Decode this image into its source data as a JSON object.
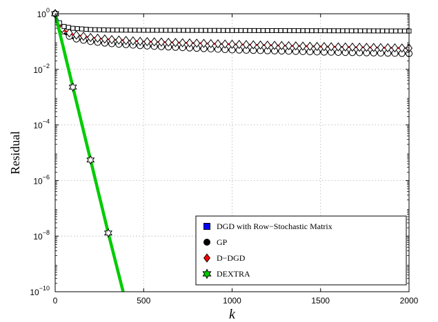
{
  "chart_data": {
    "type": "line",
    "xlabel": "k",
    "ylabel": "Residual",
    "xscale": "linear",
    "yscale": "log",
    "xlim": [
      0,
      2000
    ],
    "ylim_exponent": [
      -10,
      0
    ],
    "x_ticks": [
      "0",
      "500",
      "1000",
      "1500",
      "2000"
    ],
    "y_ticks": [
      {
        "base": "10",
        "exp": "0"
      },
      {
        "base": "10",
        "exp": "−2"
      },
      {
        "base": "10",
        "exp": "−4"
      },
      {
        "base": "10",
        "exp": "−6"
      },
      {
        "base": "10",
        "exp": "−8"
      },
      {
        "base": "10",
        "exp": "−10"
      }
    ],
    "grid": true,
    "legend_position": "bottom-right",
    "series": [
      {
        "name": "DGD with Row−Stochastic Matrix",
        "color": "#0000ff",
        "marker": "square",
        "x": [
          0,
          20,
          50,
          100,
          200,
          300,
          500,
          1000,
          1500,
          2000
        ],
        "y": [
          1,
          0.5,
          0.35,
          0.3,
          0.27,
          0.26,
          0.255,
          0.25,
          0.245,
          0.24
        ]
      },
      {
        "name": "GP",
        "color": "#000000",
        "marker": "circle",
        "x": [
          0,
          20,
          50,
          100,
          200,
          300,
          500,
          1000,
          1500,
          2000
        ],
        "y": [
          1,
          0.35,
          0.2,
          0.13,
          0.1,
          0.085,
          0.07,
          0.05,
          0.042,
          0.037
        ]
      },
      {
        "name": "D−DGD",
        "color": "#ff0000",
        "marker": "diamond",
        "x": [
          0,
          20,
          50,
          100,
          200,
          300,
          500,
          1000,
          1500,
          2000
        ],
        "y": [
          1,
          0.4,
          0.25,
          0.18,
          0.14,
          0.12,
          0.1,
          0.08,
          0.066,
          0.058
        ]
      },
      {
        "name": "DEXTRA",
        "color": "#00cc00",
        "marker": "hexagram",
        "x": [
          0,
          100,
          200,
          300,
          384
        ],
        "y": [
          1,
          0.0023,
          5.5e-06,
          1.3e-08,
          1e-10
        ]
      }
    ]
  }
}
